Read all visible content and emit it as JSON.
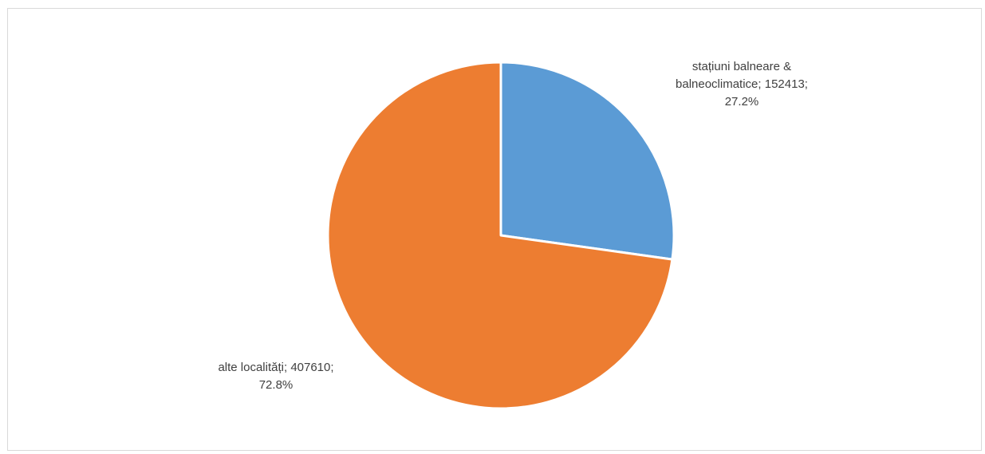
{
  "chart_data": {
    "type": "pie",
    "title": "",
    "start_angle_deg": 0,
    "direction": "clockwise",
    "slices": [
      {
        "category": "stațiuni balneare & balneoclimatice",
        "value": 152413,
        "percent": "27.2%",
        "color": "#5B9BD5",
        "label_lines": [
          "stațiuni balneare &",
          "balneoclimatice; 152413;",
          "27.2%"
        ]
      },
      {
        "category": "alte localități",
        "value": 407610,
        "percent": "72.8%",
        "color": "#ED7D31",
        "label_lines": [
          "alte localități; 407610;",
          "72.8%"
        ]
      }
    ],
    "legend": "none",
    "slice_border_color": "#FFFFFF"
  }
}
